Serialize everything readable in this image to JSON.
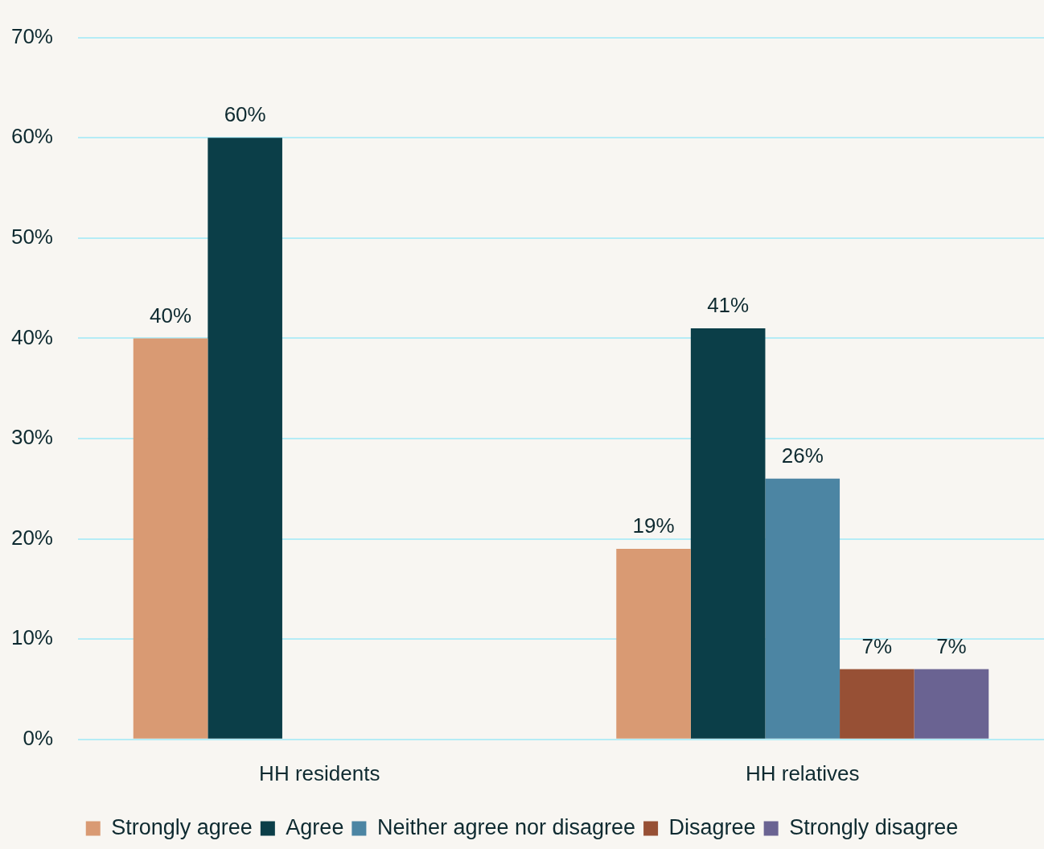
{
  "chart_data": {
    "type": "bar",
    "categories": [
      "HH residents",
      "HH relatives"
    ],
    "series": [
      {
        "name": "Strongly agree",
        "color": "#d99a73",
        "values": [
          40,
          19
        ],
        "value_labels": [
          "40%",
          "19%"
        ]
      },
      {
        "name": "Agree",
        "color": "#0b3e48",
        "values": [
          60,
          41
        ],
        "value_labels": [
          "60%",
          "41%"
        ]
      },
      {
        "name": "Neither agree nor disagree",
        "color": "#4c85a3",
        "values": [
          null,
          26
        ],
        "value_labels": [
          null,
          "26%"
        ]
      },
      {
        "name": "Disagree",
        "color": "#975035",
        "values": [
          null,
          7
        ],
        "value_labels": [
          null,
          "7%"
        ]
      },
      {
        "name": "Strongly disagree",
        "color": "#6a6392",
        "values": [
          null,
          7
        ],
        "value_labels": [
          null,
          "7%"
        ]
      }
    ],
    "ylim": [
      0,
      70
    ],
    "yticks": [
      {
        "value": 0,
        "label": "0%"
      },
      {
        "value": 10,
        "label": "10%"
      },
      {
        "value": 20,
        "label": "20%"
      },
      {
        "value": 30,
        "label": "30%"
      },
      {
        "value": 40,
        "label": "40%"
      },
      {
        "value": 50,
        "label": "50%"
      },
      {
        "value": 60,
        "label": "60%"
      },
      {
        "value": 70,
        "label": "70%"
      }
    ],
    "grid": "y",
    "legend": "bottom"
  }
}
